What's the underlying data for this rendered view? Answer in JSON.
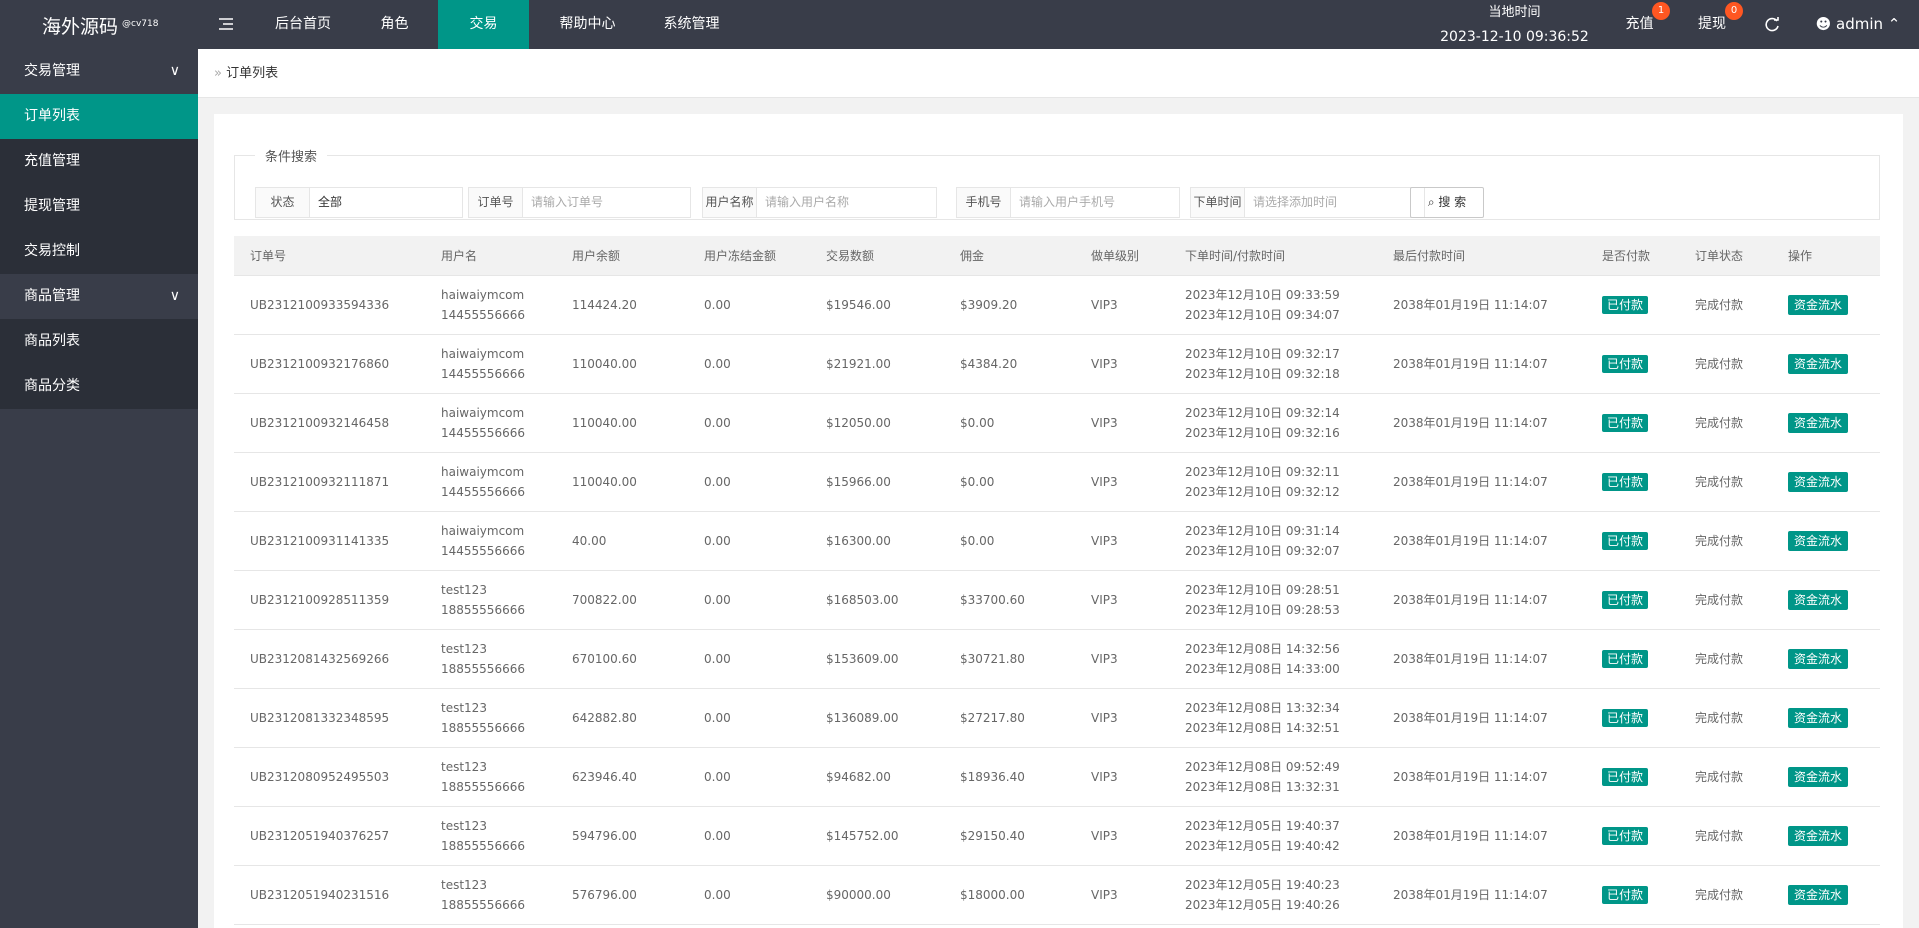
{
  "header": {
    "logo": "海外源码",
    "logo_sup": "@cv718",
    "nav": [
      "后台首页",
      "角色",
      "交易",
      "帮助中心",
      "系统管理"
    ],
    "active_nav": 2,
    "time_label": "当地时间",
    "time": "2023-12-10 09:36:52",
    "recharge": {
      "label": "充值",
      "badge": "1"
    },
    "withdraw": {
      "label": "提现",
      "badge": "0"
    },
    "user": "admin"
  },
  "sidebar": [
    {
      "title": "交易管理",
      "items": [
        "订单列表",
        "充值管理",
        "提现管理",
        "交易控制"
      ]
    },
    {
      "title": "商品管理",
      "items": [
        "商品列表",
        "商品分类"
      ]
    }
  ],
  "breadcrumb": "订单列表",
  "search": {
    "legend": "条件搜索",
    "fields": [
      {
        "label": "状态",
        "value": "全部"
      },
      {
        "label": "订单号",
        "placeholder": "请输入订单号"
      },
      {
        "label": "用户名称",
        "placeholder": "请输入用户名称"
      },
      {
        "label": "手机号",
        "placeholder": "请输入用户手机号"
      },
      {
        "label": "下单时间",
        "placeholder": "请选择添加时间"
      }
    ],
    "button": "搜 索"
  },
  "table": {
    "columns": [
      "订单号",
      "用户名",
      "用户余额",
      "用户冻结金额",
      "交易数额",
      "佣金",
      "做单级别",
      "下单时间/付款时间",
      "最后付款时间",
      "是否付款",
      "订单状态",
      "操作"
    ],
    "rows": [
      [
        "UB2312100933594336",
        [
          "haiwaiymcom",
          "14455556666"
        ],
        "114424.20",
        "0.00",
        "$19546.00",
        "$3909.20",
        "VIP3",
        [
          "2023年12月10日 09:33:59",
          "2023年12月10日 09:34:07"
        ],
        "2038年01月19日 11:14:07",
        "已付款",
        "完成付款",
        "资金流水"
      ],
      [
        "UB2312100932176860",
        [
          "haiwaiymcom",
          "14455556666"
        ],
        "110040.00",
        "0.00",
        "$21921.00",
        "$4384.20",
        "VIP3",
        [
          "2023年12月10日 09:32:17",
          "2023年12月10日 09:32:18"
        ],
        "2038年01月19日 11:14:07",
        "已付款",
        "完成付款",
        "资金流水"
      ],
      [
        "UB2312100932146458",
        [
          "haiwaiymcom",
          "14455556666"
        ],
        "110040.00",
        "0.00",
        "$12050.00",
        "$0.00",
        "VIP3",
        [
          "2023年12月10日 09:32:14",
          "2023年12月10日 09:32:16"
        ],
        "2038年01月19日 11:14:07",
        "已付款",
        "完成付款",
        "资金流水"
      ],
      [
        "UB2312100932111871",
        [
          "haiwaiymcom",
          "14455556666"
        ],
        "110040.00",
        "0.00",
        "$15966.00",
        "$0.00",
        "VIP3",
        [
          "2023年12月10日 09:32:11",
          "2023年12月10日 09:32:12"
        ],
        "2038年01月19日 11:14:07",
        "已付款",
        "完成付款",
        "资金流水"
      ],
      [
        "UB2312100931141335",
        [
          "haiwaiymcom",
          "14455556666"
        ],
        "40.00",
        "0.00",
        "$16300.00",
        "$0.00",
        "VIP3",
        [
          "2023年12月10日 09:31:14",
          "2023年12月10日 09:32:07"
        ],
        "2038年01月19日 11:14:07",
        "已付款",
        "完成付款",
        "资金流水"
      ],
      [
        "UB2312100928511359",
        [
          "test123",
          "18855556666"
        ],
        "700822.00",
        "0.00",
        "$168503.00",
        "$33700.60",
        "VIP3",
        [
          "2023年12月10日 09:28:51",
          "2023年12月10日 09:28:53"
        ],
        "2038年01月19日 11:14:07",
        "已付款",
        "完成付款",
        "资金流水"
      ],
      [
        "UB2312081432569266",
        [
          "test123",
          "18855556666"
        ],
        "670100.60",
        "0.00",
        "$153609.00",
        "$30721.80",
        "VIP3",
        [
          "2023年12月08日 14:32:56",
          "2023年12月08日 14:33:00"
        ],
        "2038年01月19日 11:14:07",
        "已付款",
        "完成付款",
        "资金流水"
      ],
      [
        "UB2312081332348595",
        [
          "test123",
          "18855556666"
        ],
        "642882.80",
        "0.00",
        "$136089.00",
        "$27217.80",
        "VIP3",
        [
          "2023年12月08日 13:32:34",
          "2023年12月08日 14:32:51"
        ],
        "2038年01月19日 11:14:07",
        "已付款",
        "完成付款",
        "资金流水"
      ],
      [
        "UB2312080952495503",
        [
          "test123",
          "18855556666"
        ],
        "623946.40",
        "0.00",
        "$94682.00",
        "$18936.40",
        "VIP3",
        [
          "2023年12月08日 09:52:49",
          "2023年12月08日 13:32:31"
        ],
        "2038年01月19日 11:14:07",
        "已付款",
        "完成付款",
        "资金流水"
      ],
      [
        "UB2312051940376257",
        [
          "test123",
          "18855556666"
        ],
        "594796.00",
        "0.00",
        "$145752.00",
        "$29150.40",
        "VIP3",
        [
          "2023年12月05日 19:40:37",
          "2023年12月05日 19:40:42"
        ],
        "2038年01月19日 11:14:07",
        "已付款",
        "完成付款",
        "资金流水"
      ],
      [
        "UB2312051940231516",
        [
          "test123",
          "18855556666"
        ],
        "576796.00",
        "0.00",
        "$90000.00",
        "$18000.00",
        "VIP3",
        [
          "2023年12月05日 19:40:23",
          "2023年12月05日 19:40:26"
        ],
        "2038年01月19日 11:14:07",
        "已付款",
        "完成付款",
        "资金流水"
      ]
    ]
  }
}
